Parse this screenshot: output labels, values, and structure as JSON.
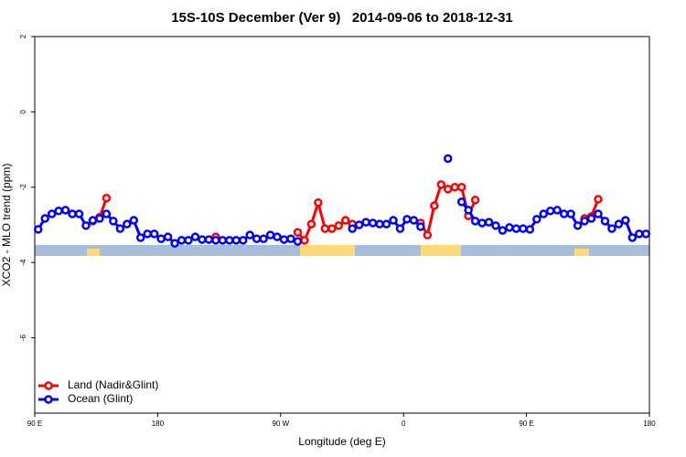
{
  "chart_data": {
    "type": "line",
    "title": "15S-10S December (Ver 9)   2014-09-06 to 2018-12-31",
    "xlabel": "Longitude (deg E)",
    "ylabel": "XCO2 - MLO trend (ppm)",
    "xlim": [
      90,
      540
    ],
    "ylim": [
      -8,
      2
    ],
    "xticks": [
      {
        "value": 90,
        "label": "90 E"
      },
      {
        "value": 180,
        "label": "180"
      },
      {
        "value": 270,
        "label": "90 W"
      },
      {
        "value": 360,
        "label": "0"
      },
      {
        "value": 450,
        "label": "90 E"
      },
      {
        "value": 540,
        "label": "180"
      }
    ],
    "yticks": [
      2,
      0,
      -2,
      -4,
      -6
    ],
    "legend": "bottom-left",
    "x": [
      92.5,
      97.5,
      102.5,
      107.5,
      112.5,
      117.5,
      122.5,
      127.5,
      132.5,
      137.5,
      142.5,
      147.5,
      152.5,
      157.5,
      162.5,
      167.5,
      172.5,
      177.5,
      182.5,
      187.5,
      192.5,
      197.5,
      202.5,
      207.5,
      212.5,
      217.5,
      222.5,
      227.5,
      232.5,
      237.5,
      242.5,
      247.5,
      252.5,
      257.5,
      262.5,
      267.5,
      272.5,
      277.5,
      282.5,
      287.5,
      292.5,
      297.5,
      302.5,
      307.5,
      312.5,
      317.5,
      322.5,
      327.5,
      332.5,
      337.5,
      342.5,
      347.5,
      352.5,
      357.5,
      362.5,
      367.5,
      372.5,
      377.5,
      382.5,
      387.5,
      392.5,
      397.5,
      402.5,
      407.5,
      412.5,
      417.5,
      422.5,
      427.5,
      432.5,
      437.5,
      442.5,
      447.5,
      452.5,
      457.5,
      462.5,
      467.5,
      472.5,
      477.5,
      482.5,
      487.5,
      492.5,
      497.5,
      502.5,
      507.5,
      512.5,
      517.5,
      522.5,
      527.5,
      532.5,
      537.5
    ],
    "series": [
      {
        "name": "Land (Nadir&Glint)",
        "color": "#ff0000",
        "values": [
          null,
          null,
          null,
          null,
          null,
          null,
          null,
          null,
          -2.9,
          -2.8,
          -2.29,
          null,
          null,
          null,
          null,
          null,
          null,
          null,
          null,
          null,
          null,
          null,
          null,
          null,
          null,
          null,
          -3.32,
          null,
          null,
          null,
          null,
          null,
          null,
          null,
          null,
          null,
          null,
          null,
          -3.2,
          -3.41,
          -2.98,
          -2.41,
          -3.1,
          -3.1,
          -3.02,
          -2.88,
          -2.98,
          null,
          null,
          null,
          null,
          null,
          null,
          null,
          null,
          null,
          -2.95,
          -3.27,
          -2.49,
          -1.93,
          -2.05,
          -2.0,
          -2.0,
          -2.76,
          -2.34,
          null,
          null,
          null,
          null,
          null,
          null,
          null,
          null,
          null,
          null,
          null,
          null,
          null,
          null,
          null,
          -2.83,
          -2.78,
          -2.32,
          null,
          null,
          null,
          null,
          null,
          null,
          null
        ]
      },
      {
        "name": "Ocean (Glint)",
        "color": "#0000ff",
        "values": [
          -3.12,
          -2.83,
          -2.71,
          -2.63,
          -2.61,
          -2.71,
          -2.71,
          -3.02,
          -2.88,
          -2.83,
          -2.71,
          -2.9,
          -3.1,
          -2.98,
          -2.88,
          -3.34,
          -3.24,
          -3.24,
          -3.37,
          -3.32,
          -3.49,
          -3.41,
          -3.41,
          -3.32,
          -3.39,
          -3.39,
          -3.41,
          -3.41,
          -3.41,
          -3.41,
          -3.41,
          -3.27,
          -3.37,
          -3.37,
          -3.27,
          -3.32,
          -3.39,
          -3.37,
          -3.44,
          null,
          null,
          null,
          null,
          null,
          null,
          null,
          -3.1,
          -3.0,
          -2.93,
          -2.95,
          -2.98,
          -2.98,
          -2.88,
          -3.1,
          -2.85,
          -2.88,
          -3.05,
          null,
          null,
          null,
          -1.24,
          null,
          -2.39,
          -2.61,
          -2.9,
          -2.95,
          -2.93,
          -3.02,
          -3.15,
          -3.07,
          -3.1,
          -3.1,
          -3.12,
          -2.85,
          -2.71,
          -2.63,
          -2.61,
          -2.71,
          -2.71,
          -3.02,
          -2.9,
          -2.83,
          -2.71,
          -2.9,
          -3.1,
          -2.98,
          -2.88,
          -3.34,
          -3.24,
          -3.24
        ]
      }
    ]
  }
}
